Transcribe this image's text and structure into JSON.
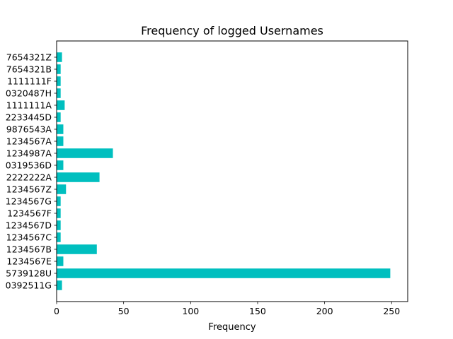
{
  "chart_data": {
    "type": "bar",
    "orientation": "horizontal",
    "title": "Frequency of logged Usernames",
    "xlabel": "Frequency",
    "ylabel": "",
    "xlim": [
      0,
      262
    ],
    "xticks": [
      0,
      50,
      100,
      150,
      200,
      250
    ],
    "categories": [
      "0392511G",
      "5739128U",
      "1234567E",
      "1234567B",
      "1234567C",
      "1234567D",
      "1234567F",
      "1234567G",
      "1234567Z",
      "2222222A",
      "0319536D",
      "1234987A",
      "1234567A",
      "9876543A",
      "2233445D",
      "1111111A",
      "0320487H",
      "1111111F",
      "7654321B",
      "7654321Z"
    ],
    "values": [
      4,
      249,
      5,
      30,
      3,
      3,
      3,
      3,
      7,
      32,
      5,
      42,
      5,
      5,
      3,
      6,
      3,
      3,
      3,
      4
    ],
    "bar_color": "#00bfbf",
    "grid": false,
    "legend": "none"
  }
}
